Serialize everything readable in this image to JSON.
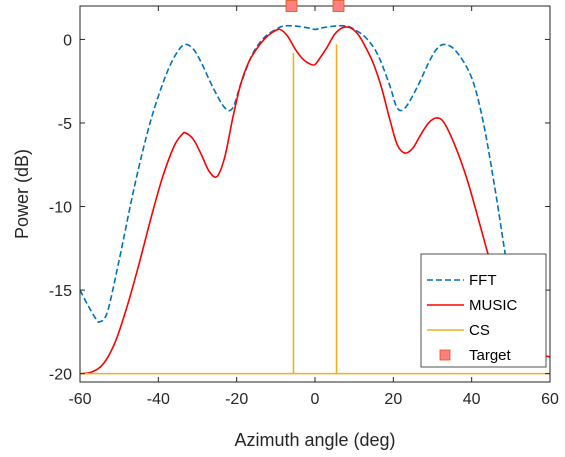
{
  "chart_data": {
    "type": "line",
    "title": "",
    "xlabel": "Azimuth angle (deg)",
    "ylabel": "Power (dB)",
    "xlim": [
      -60,
      60
    ],
    "ylim": [
      -20.5,
      2
    ],
    "xticks": [
      -60,
      -40,
      -20,
      0,
      20,
      40,
      60
    ],
    "yticks": [
      -20,
      -15,
      -10,
      -5,
      0
    ],
    "grid": false,
    "legend_position": "bottom-right",
    "series": [
      {
        "name": "FFT",
        "style": "dashed",
        "color": "#0072BD",
        "x": [
          -60,
          -58,
          -56,
          -55,
          -53,
          -50,
          -46,
          -42,
          -38,
          -35,
          -33,
          -31,
          -29,
          -26,
          -23,
          -21,
          -19,
          -16,
          -13,
          -10,
          -8,
          -5,
          -2,
          0,
          2,
          5,
          8,
          10,
          13,
          16,
          19,
          21,
          23,
          26,
          29,
          31,
          33,
          36,
          40,
          43,
          46,
          48,
          50
        ],
        "y": [
          -15.0,
          -15.9,
          -16.7,
          -16.9,
          -16.3,
          -13.2,
          -8.7,
          -4.9,
          -2.1,
          -0.7,
          -0.3,
          -0.6,
          -1.4,
          -2.9,
          -4.1,
          -4.1,
          -2.7,
          -0.9,
          0.1,
          0.6,
          0.8,
          0.8,
          0.7,
          0.6,
          0.7,
          0.8,
          0.8,
          0.6,
          0.1,
          -0.9,
          -2.7,
          -4.1,
          -4.1,
          -2.9,
          -1.4,
          -0.6,
          -0.3,
          -0.7,
          -2.3,
          -5.0,
          -9.0,
          -12.0,
          -15.0
        ]
      },
      {
        "name": "MUSIC",
        "style": "solid",
        "color": "#FF0000",
        "x": [
          -60,
          -57,
          -54,
          -51,
          -48,
          -45,
          -42,
          -39,
          -36,
          -34,
          -33,
          -31,
          -29,
          -27,
          -25,
          -23,
          -21,
          -19,
          -17,
          -15,
          -13,
          -11,
          -9,
          -7,
          -5,
          -3,
          -1,
          0,
          1,
          3,
          5,
          7,
          9,
          11,
          13,
          15,
          17,
          19,
          21,
          23,
          25,
          27,
          29,
          31,
          33,
          36,
          39,
          42,
          45,
          48,
          51,
          54,
          57,
          60
        ],
        "y": [
          -20.0,
          -19.9,
          -19.4,
          -18.1,
          -16.0,
          -13.5,
          -10.8,
          -8.3,
          -6.4,
          -5.7,
          -5.6,
          -6.0,
          -6.9,
          -7.9,
          -8.2,
          -7.0,
          -4.7,
          -2.7,
          -1.4,
          -0.6,
          0.0,
          0.4,
          0.6,
          0.2,
          -0.6,
          -1.2,
          -1.5,
          -1.5,
          -1.2,
          -0.5,
          0.3,
          0.7,
          0.7,
          0.3,
          -0.5,
          -1.5,
          -2.9,
          -4.7,
          -6.3,
          -6.8,
          -6.5,
          -5.7,
          -5.0,
          -4.7,
          -5.0,
          -6.5,
          -8.5,
          -11.0,
          -13.5,
          -15.5,
          -17.0,
          -18.2,
          -18.8,
          -19.0
        ]
      },
      {
        "name": "CS",
        "style": "stem",
        "color": "#EDB120",
        "baseline": -20,
        "x": [
          -5.5,
          5.5
        ],
        "y": [
          -0.8,
          -0.3
        ]
      },
      {
        "name": "Target",
        "style": "marker",
        "color": "#FF7F7F",
        "x": [
          -6,
          6
        ],
        "y": [
          2,
          2
        ]
      }
    ]
  },
  "colors": {
    "axes": "#262626",
    "fft": "#0072BD",
    "music": "#FF0000",
    "cs": "#EDB120",
    "target_fill": "#FF7F7F",
    "target_edge": "#D95319"
  }
}
